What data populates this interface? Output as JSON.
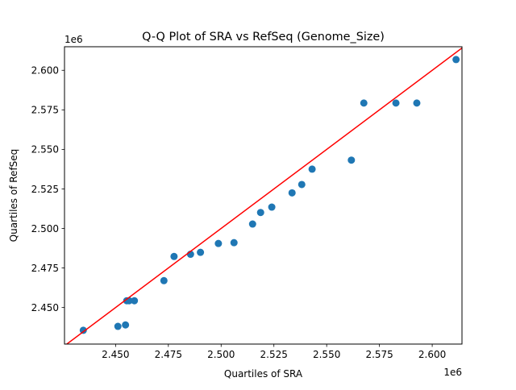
{
  "chart_data": {
    "type": "scatter",
    "title": "Q-Q Plot of SRA vs RefSeq (Genome_Size)",
    "xlabel": "Quartiles of SRA",
    "ylabel": "Quartiles of RefSeq",
    "x_offset_label": "1e6",
    "y_offset_label": "1e6",
    "xlim": [
      2.4258,
      2.6141
    ],
    "ylim": [
      2.4269,
      2.6149
    ],
    "xticks": [
      2.45,
      2.475,
      2.5,
      2.525,
      2.55,
      2.575,
      2.6
    ],
    "xtick_labels": [
      "2.450",
      "2.475",
      "2.500",
      "2.525",
      "2.550",
      "2.575",
      "2.600"
    ],
    "yticks": [
      2.45,
      2.475,
      2.5,
      2.525,
      2.55,
      2.575,
      2.6
    ],
    "ytick_labels": [
      "2.450",
      "2.475",
      "2.500",
      "2.525",
      "2.550",
      "2.575",
      "2.600"
    ],
    "grid": false,
    "points_color": "#1f77b4",
    "reference_line": {
      "slope": 1,
      "intercept": 0,
      "color": "#ff0000"
    },
    "x": [
      2.4347,
      2.4511,
      2.4547,
      2.4553,
      2.4564,
      2.4589,
      2.4729,
      2.4777,
      2.4855,
      2.4902,
      2.4987,
      2.5061,
      2.5149,
      2.5187,
      2.524,
      2.5336,
      2.5382,
      2.5431,
      2.5617,
      2.5676,
      2.5828,
      2.5927,
      2.6113
    ],
    "y": [
      2.4356,
      2.4381,
      2.439,
      2.4543,
      2.4543,
      2.4543,
      2.467,
      2.4823,
      2.4837,
      2.4849,
      2.4905,
      2.491,
      2.5028,
      2.5101,
      2.5135,
      2.5225,
      2.5278,
      2.5375,
      2.5432,
      2.5793,
      2.5793,
      2.5793,
      2.6068
    ]
  }
}
